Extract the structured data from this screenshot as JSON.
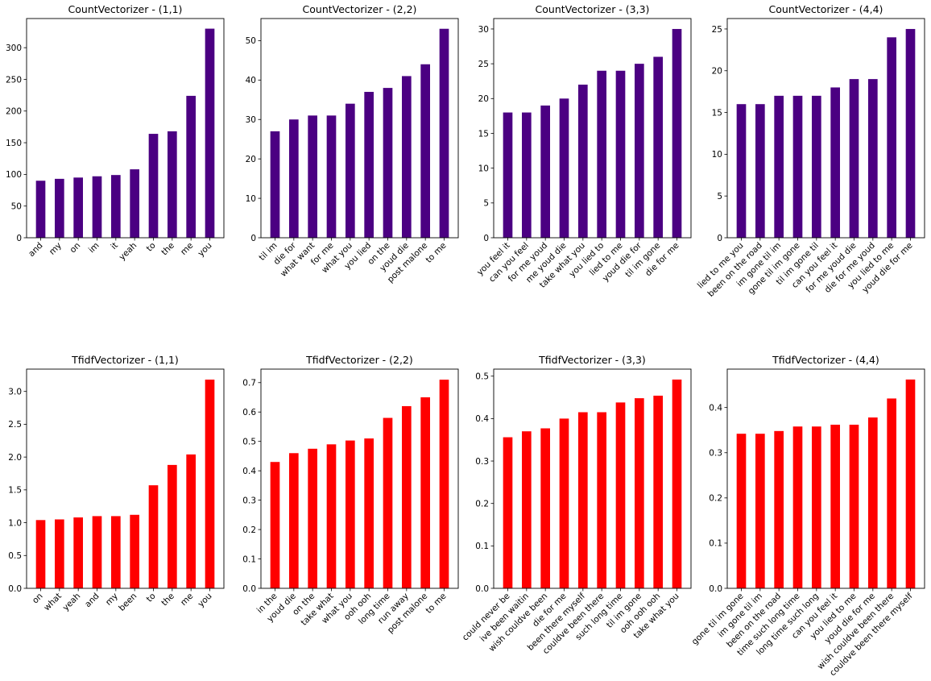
{
  "chart_data": [
    {
      "type": "bar",
      "title": "CountVectorizer - (1,1)",
      "categories": [
        "and",
        "my",
        "on",
        "im",
        "it",
        "yeah",
        "to",
        "the",
        "me",
        "you"
      ],
      "values": [
        90,
        93,
        95,
        97,
        99,
        108,
        164,
        168,
        224,
        330
      ],
      "ylim": [
        0,
        346
      ],
      "yticks": [
        0,
        50,
        100,
        150,
        200,
        250,
        300
      ],
      "ytick_labels": [
        "0",
        "50",
        "100",
        "150",
        "200",
        "250",
        "300"
      ],
      "color": "#4b0082"
    },
    {
      "type": "bar",
      "title": "CountVectorizer - (2,2)",
      "categories": [
        "til im",
        "die for",
        "what want",
        "for me",
        "what you",
        "you lied",
        "on the",
        "youd die",
        "post malone",
        "to me"
      ],
      "values": [
        27,
        30,
        31,
        31,
        34,
        37,
        38,
        41,
        44,
        53
      ],
      "ylim": [
        0,
        55.6
      ],
      "yticks": [
        0,
        10,
        20,
        30,
        40,
        50
      ],
      "ytick_labels": [
        "0",
        "10",
        "20",
        "30",
        "40",
        "50"
      ],
      "color": "#4b0082"
    },
    {
      "type": "bar",
      "title": "CountVectorizer - (3,3)",
      "categories": [
        "you feel it",
        "can you feel",
        "for me youd",
        "me youd die",
        "take what you",
        "you lied to",
        "lied to me",
        "youd die for",
        "til im gone",
        "die for me"
      ],
      "values": [
        18,
        18,
        19,
        20,
        22,
        24,
        24,
        25,
        26,
        30
      ],
      "ylim": [
        0,
        31.5
      ],
      "yticks": [
        0,
        5,
        10,
        15,
        20,
        25,
        30
      ],
      "ytick_labels": [
        "0",
        "5",
        "10",
        "15",
        "20",
        "25",
        "30"
      ],
      "color": "#4b0082"
    },
    {
      "type": "bar",
      "title": "CountVectorizer - (4,4)",
      "categories": [
        "lied to me you",
        "been on the road",
        "im gone til im",
        "gone til im gone",
        "til im gone til",
        "can you feel it",
        "for me youd die",
        "die for me youd",
        "you lied to me",
        "youd die for me"
      ],
      "values": [
        16,
        16,
        17,
        17,
        17,
        18,
        19,
        19,
        24,
        25
      ],
      "ylim": [
        0,
        26.25
      ],
      "yticks": [
        0,
        5,
        10,
        15,
        20,
        25
      ],
      "ytick_labels": [
        "0",
        "5",
        "10",
        "15",
        "20",
        "25"
      ],
      "color": "#4b0082"
    },
    {
      "type": "bar",
      "title": "TfidfVectorizer - (1,1)",
      "categories": [
        "on",
        "what",
        "yeah",
        "and",
        "my",
        "been",
        "to",
        "the",
        "me",
        "you"
      ],
      "values": [
        1.04,
        1.05,
        1.08,
        1.1,
        1.1,
        1.12,
        1.57,
        1.88,
        2.04,
        3.18
      ],
      "ylim": [
        0,
        3.34
      ],
      "yticks": [
        0,
        0.5,
        1.0,
        1.5,
        2.0,
        2.5,
        3.0
      ],
      "ytick_labels": [
        "0.0",
        "0.5",
        "1.0",
        "1.5",
        "2.0",
        "2.5",
        "3.0"
      ],
      "color": "#ff0000"
    },
    {
      "type": "bar",
      "title": "TfidfVectorizer - (2,2)",
      "categories": [
        "in the",
        "youd die",
        "on the",
        "take what",
        "what you",
        "ooh ooh",
        "long time",
        "run away",
        "post malone",
        "to me"
      ],
      "values": [
        0.43,
        0.46,
        0.475,
        0.49,
        0.503,
        0.51,
        0.58,
        0.62,
        0.65,
        0.71
      ],
      "ylim": [
        0,
        0.746
      ],
      "yticks": [
        0,
        0.1,
        0.2,
        0.3,
        0.4,
        0.5,
        0.6,
        0.7
      ],
      "ytick_labels": [
        "0.0",
        "0.1",
        "0.2",
        "0.3",
        "0.4",
        "0.5",
        "0.6",
        "0.7"
      ],
      "color": "#ff0000"
    },
    {
      "type": "bar",
      "title": "TfidfVectorizer - (3,3)",
      "categories": [
        "could never be",
        "ive been waitin",
        "wish couldve been",
        "die for me",
        "been there myself",
        "couldve been there",
        "such long time",
        "til im gone",
        "ooh ooh ooh",
        "take what you"
      ],
      "values": [
        0.356,
        0.37,
        0.377,
        0.4,
        0.415,
        0.415,
        0.438,
        0.448,
        0.454,
        0.492
      ],
      "ylim": [
        0,
        0.5166
      ],
      "yticks": [
        0,
        0.1,
        0.2,
        0.3,
        0.4,
        0.5
      ],
      "ytick_labels": [
        "0.0",
        "0.1",
        "0.2",
        "0.3",
        "0.4",
        "0.5"
      ],
      "color": "#ff0000"
    },
    {
      "type": "bar",
      "title": "TfidfVectorizer - (4,4)",
      "categories": [
        "gone til im gone",
        "im gone til im",
        "been on the road",
        "time such long time",
        "long time such long",
        "can you feel it",
        "you lied to me",
        "youd die for me",
        "wish couldve been there",
        "couldve been there myself"
      ],
      "values": [
        0.342,
        0.342,
        0.348,
        0.358,
        0.358,
        0.362,
        0.362,
        0.378,
        0.42,
        0.462
      ],
      "ylim": [
        0,
        0.485
      ],
      "yticks": [
        0,
        0.1,
        0.2,
        0.3,
        0.4
      ],
      "ytick_labels": [
        "0.0",
        "0.1",
        "0.2",
        "0.3",
        "0.4"
      ],
      "color": "#ff0000"
    }
  ]
}
